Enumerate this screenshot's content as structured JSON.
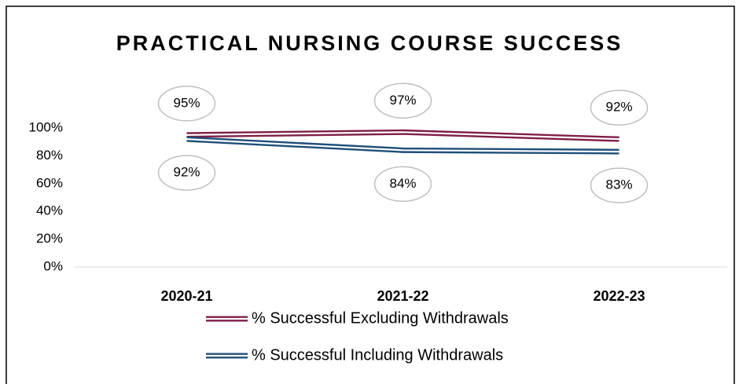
{
  "chart_data": {
    "type": "line",
    "title": "PRACTICAL NURSING COURSE SUCCESS",
    "categories": [
      "2020-21",
      "2021-22",
      "2022-23"
    ],
    "series": [
      {
        "name": "% Successful Excluding Withdrawals",
        "color": "#7f1d47",
        "values": [
          95,
          97,
          92
        ],
        "value_labels": [
          "95%",
          "97%",
          "92%"
        ]
      },
      {
        "name": "% Successful Including Withdrawals",
        "color": "#1f4e79",
        "values": [
          92,
          84,
          83
        ],
        "value_labels": [
          "92%",
          "84%",
          "83%"
        ]
      }
    ],
    "ylim": [
      0,
      100
    ],
    "yticks": [
      {
        "value": 0,
        "label": "0%"
      },
      {
        "value": 20,
        "label": "20%"
      },
      {
        "value": 40,
        "label": "40%"
      },
      {
        "value": 60,
        "label": "60%"
      },
      {
        "value": 80,
        "label": "80%"
      },
      {
        "value": 100,
        "label": "100%"
      }
    ],
    "grid": false
  }
}
